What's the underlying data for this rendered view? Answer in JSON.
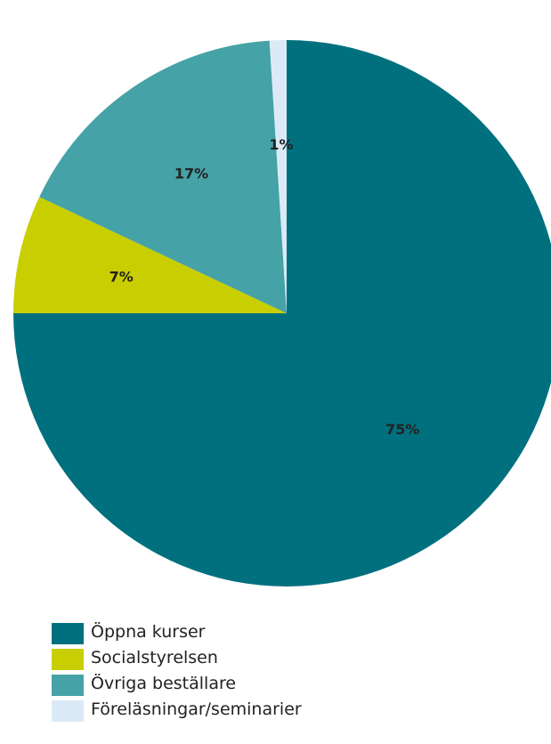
{
  "chart_data": {
    "type": "pie",
    "title": "",
    "start_angle_deg": 0,
    "direction": "clockwise",
    "slices": [
      {
        "label": "Öppna kurser",
        "value": 75,
        "display": "75%",
        "color": "#00707F"
      },
      {
        "label": "Socialstyrelsen",
        "value": 7,
        "display": "7%",
        "color": "#C8CE00"
      },
      {
        "label": "Övriga beställare",
        "value": 17,
        "display": "17%",
        "color": "#45A2A6"
      },
      {
        "label": "Föreläsningar/seminarier",
        "value": 1,
        "display": "1%",
        "color": "#DCEAF7"
      }
    ],
    "legend_position": "bottom-left"
  },
  "legend": {
    "items": [
      {
        "label": "Öppna kurser",
        "color": "#00707F"
      },
      {
        "label": "Socialstyrelsen",
        "color": "#C8CE00"
      },
      {
        "label": "Övriga beställare",
        "color": "#45A2A6"
      },
      {
        "label": "Föreläsningar/seminarier",
        "color": "#DCEAF7"
      }
    ]
  }
}
